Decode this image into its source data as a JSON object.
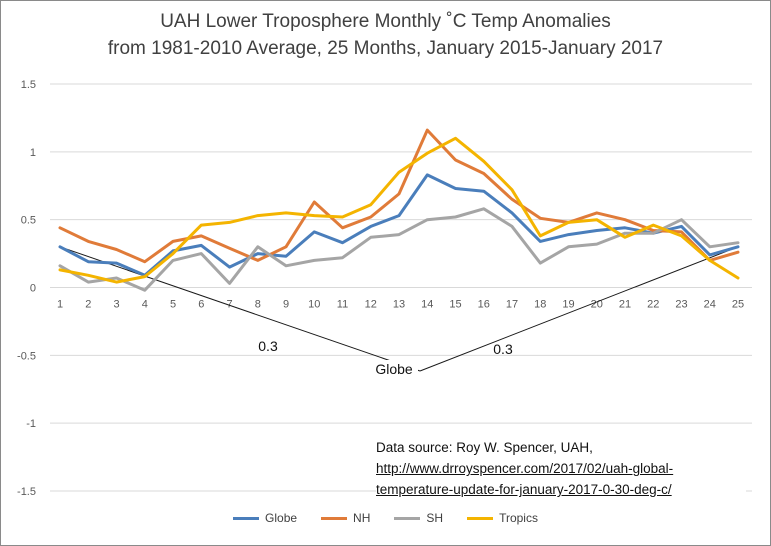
{
  "title_line1": "UAH Lower Troposphere Monthly ˚C Temp Anomalies",
  "title_line2": "from 1981-2010 Average, 25 Months, January 2015-January 2017",
  "source_label": "Data source: Roy W. Spencer, UAH,",
  "source_url_line1": "http://www.drroyspencer.com/2017/02/uah-global-",
  "source_url_line2": "temperature-update-for-january-2017-0-30-deg-c/",
  "chart_data": {
    "type": "line",
    "x": [
      1,
      2,
      3,
      4,
      5,
      6,
      7,
      8,
      9,
      10,
      11,
      12,
      13,
      14,
      15,
      16,
      17,
      18,
      19,
      20,
      21,
      22,
      23,
      24,
      25
    ],
    "x_tick_labels": [
      "1",
      "2",
      "3",
      "4",
      "5",
      "6",
      "7",
      "8",
      "9",
      "10",
      "11",
      "12",
      "13",
      "14",
      "15",
      "16",
      "17",
      "18",
      "19",
      "20",
      "21",
      "22",
      "23",
      "24",
      "25"
    ],
    "y_ticks": [
      1.5,
      1,
      0.5,
      0,
      -0.5,
      -1,
      -1.5
    ],
    "y_tick_labels": [
      "1.5",
      "1",
      "0.5",
      "0",
      "-0.5",
      "-1",
      "-1.5"
    ],
    "ylim": [
      -1.5,
      1.5
    ],
    "grid": "horizontal",
    "legend_position": "bottom",
    "series": [
      {
        "name": "Globe",
        "color": "#4a7ebb",
        "values": [
          0.3,
          0.19,
          0.18,
          0.09,
          0.27,
          0.31,
          0.15,
          0.25,
          0.23,
          0.41,
          0.33,
          0.45,
          0.53,
          0.83,
          0.73,
          0.71,
          0.55,
          0.34,
          0.39,
          0.42,
          0.44,
          0.4,
          0.45,
          0.24,
          0.3
        ]
      },
      {
        "name": "NH",
        "color": "#e07b39",
        "values": [
          0.44,
          0.34,
          0.28,
          0.19,
          0.34,
          0.38,
          0.29,
          0.2,
          0.3,
          0.63,
          0.44,
          0.52,
          0.69,
          1.16,
          0.94,
          0.84,
          0.65,
          0.51,
          0.48,
          0.55,
          0.5,
          0.42,
          0.41,
          0.2,
          0.26
        ]
      },
      {
        "name": "SH",
        "color": "#a5a5a5",
        "values": [
          0.16,
          0.04,
          0.07,
          -0.02,
          0.2,
          0.25,
          0.03,
          0.3,
          0.16,
          0.2,
          0.22,
          0.37,
          0.39,
          0.5,
          0.52,
          0.58,
          0.45,
          0.18,
          0.3,
          0.32,
          0.4,
          0.4,
          0.5,
          0.3,
          0.33
        ]
      },
      {
        "name": "Tropics",
        "color": "#f4b400",
        "values": [
          0.13,
          0.09,
          0.04,
          0.08,
          0.25,
          0.46,
          0.48,
          0.53,
          0.55,
          0.53,
          0.52,
          0.61,
          0.85,
          0.99,
          1.1,
          0.93,
          0.72,
          0.38,
          0.48,
          0.5,
          0.37,
          0.46,
          0.38,
          0.2,
          0.07
        ]
      }
    ],
    "annotations": [
      {
        "text": "Globe",
        "value": 0.3,
        "from_month": 1,
        "to_month": 25
      },
      {
        "text": "0.3",
        "segment": "left"
      },
      {
        "text": "0.3",
        "segment": "right"
      }
    ]
  }
}
